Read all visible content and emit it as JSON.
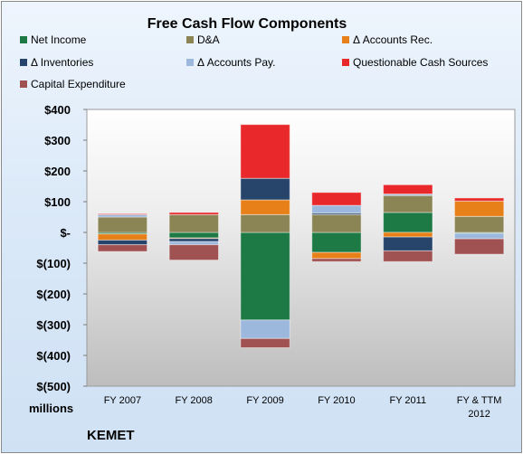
{
  "chart_data": {
    "type": "bar",
    "stacked": true,
    "title": "Free Cash Flow Components",
    "unit_label": "millions",
    "company": "KEMET",
    "categories": [
      "FY 2007",
      "FY 2008",
      "FY 2009",
      "FY 2010",
      "FY 2011",
      "FY & TTM 2012"
    ],
    "category_lines": [
      [
        "FY 2007"
      ],
      [
        "FY 2008"
      ],
      [
        "FY 2009"
      ],
      [
        "FY 2010"
      ],
      [
        "FY 2011"
      ],
      [
        "FY & TTM",
        "2012"
      ]
    ],
    "ylim": [
      -500,
      400
    ],
    "y_ticks": [
      400,
      300,
      200,
      100,
      0,
      -100,
      -200,
      -300,
      -400,
      -500
    ],
    "y_tick_labels": [
      "$400",
      "$300",
      "$200",
      "$100",
      "$-",
      "$(100)",
      "$(200)",
      "$(300)",
      "$(400)",
      "$(500)"
    ],
    "grid": false,
    "legend_position": "top",
    "series": [
      {
        "name": "Net Income",
        "color": "#1e7a45",
        "values": [
          -5,
          -18,
          -285,
          -65,
          65,
          -3
        ]
      },
      {
        "name": "D&A",
        "color": "#8b8455",
        "values": [
          50,
          58,
          58,
          58,
          55,
          52
        ]
      },
      {
        "name": "Δ Accounts Rec.",
        "color": "#e8801a",
        "values": [
          -20,
          -2,
          48,
          -20,
          -15,
          50
        ]
      },
      {
        "name": "Δ Inventories",
        "color": "#27456b",
        "values": [
          -15,
          -10,
          70,
          5,
          -45,
          0
        ]
      },
      {
        "name": "Δ Accounts Pay.",
        "color": "#9cb8dc",
        "values": [
          8,
          -10,
          -60,
          25,
          5,
          -18
        ]
      },
      {
        "name": "Questionable Cash Sources",
        "color": "#e8282a",
        "values": [
          3,
          7,
          175,
          42,
          30,
          10
        ]
      },
      {
        "name": "Capital Expenditure",
        "color": "#a05252",
        "values": [
          -22,
          -50,
          -30,
          -10,
          -35,
          -50
        ]
      }
    ]
  }
}
